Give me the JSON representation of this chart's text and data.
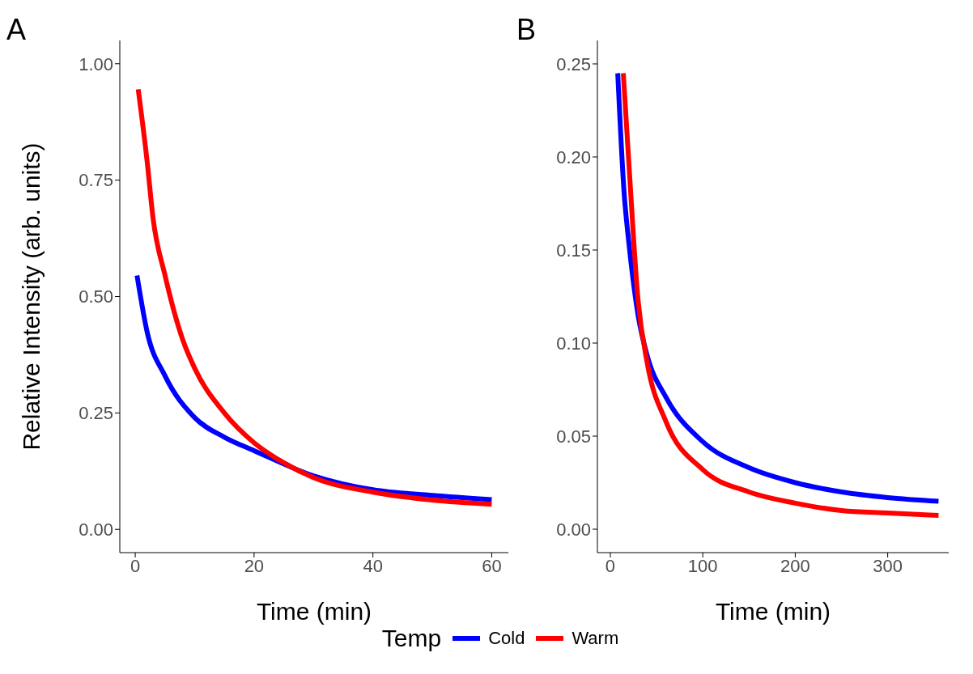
{
  "chart_data": [
    {
      "type": "line",
      "title": "A",
      "xlabel": "Time (min)",
      "ylabel": "Relative Intensity (arb. units)",
      "legend_title": "Temp",
      "legend": "bottom",
      "xlim": [
        -2.6,
        62.8
      ],
      "ylim": [
        -0.05,
        1.05
      ],
      "xticks": [
        0,
        20,
        40,
        60
      ],
      "yticks": [
        {
          "value": 0,
          "label": "0.00"
        },
        {
          "value": 0.25,
          "label": "0.25"
        },
        {
          "value": 0.5,
          "label": "0.50"
        },
        {
          "value": 0.75,
          "label": "0.75"
        },
        {
          "value": 1,
          "label": "1.00"
        }
      ],
      "line_style": "solid",
      "series": [
        {
          "name": "Cold",
          "color": "#0000ff",
          "x": [
            0.3,
            2,
            5,
            10,
            15,
            20,
            30,
            40,
            50,
            60
          ],
          "values": [
            0.545,
            0.424,
            0.33,
            0.24,
            0.198,
            0.169,
            0.115,
            0.085,
            0.073,
            0.064
          ]
        },
        {
          "name": "Warm",
          "color": "#ff0000",
          "x": [
            0.5,
            2,
            3,
            5,
            8,
            10,
            15,
            20,
            25,
            30,
            40,
            50,
            60
          ],
          "values": [
            0.945,
            0.79,
            0.668,
            0.546,
            0.407,
            0.346,
            0.25,
            0.186,
            0.143,
            0.111,
            0.08,
            0.063,
            0.054
          ]
        }
      ]
    },
    {
      "type": "line",
      "title": "B",
      "xlabel": "Time (min)",
      "xlim": [
        -14,
        366
      ],
      "ylim": [
        -0.0126,
        0.2626
      ],
      "xticks": [
        0,
        100,
        200,
        300
      ],
      "yticks": [
        {
          "value": 0,
          "label": "0.00"
        },
        {
          "value": 0.05,
          "label": "0.05"
        },
        {
          "value": 0.1,
          "label": "0.10"
        },
        {
          "value": 0.15,
          "label": "0.15"
        },
        {
          "value": 0.2,
          "label": "0.20"
        },
        {
          "value": 0.25,
          "label": "0.25"
        }
      ],
      "line_style": "solid",
      "series": [
        {
          "color": "#0000ff",
          "x": [
            8,
            15,
            20,
            30,
            40,
            60,
            100,
            150,
            200,
            250,
            300,
            355
          ],
          "values": [
            0.245,
            0.18,
            0.154,
            0.115,
            0.093,
            0.071,
            0.047,
            0.033,
            0.025,
            0.02,
            0.017,
            0.015
          ]
        },
        {
          "color": "#ff0000",
          "x": [
            14,
            20,
            30,
            40,
            60,
            100,
            150,
            200,
            250,
            300,
            355
          ],
          "values": [
            0.245,
            0.197,
            0.123,
            0.089,
            0.058,
            0.032,
            0.02,
            0.014,
            0.01,
            0.0087,
            0.0074
          ]
        }
      ]
    }
  ]
}
